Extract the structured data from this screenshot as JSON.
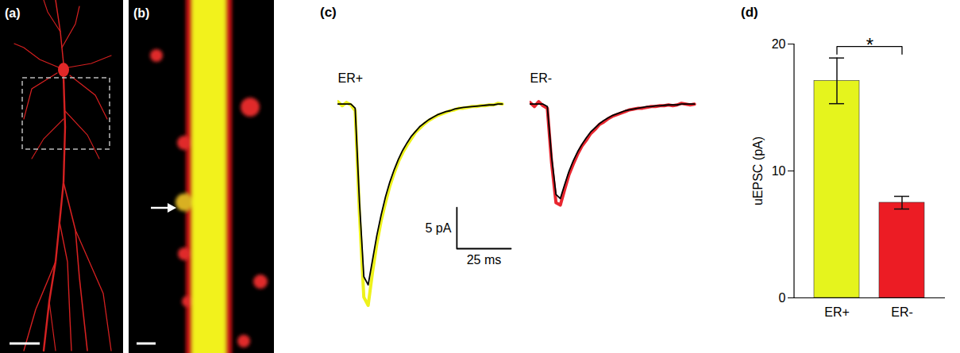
{
  "chart_data": [
    {
      "type": "image",
      "panel_label": "(a)"
    },
    {
      "type": "image",
      "panel_label": "(b)"
    },
    {
      "type": "line",
      "panel_label": "(c)",
      "tick_labels": false,
      "x": [
        0,
        2,
        4,
        6,
        8,
        10,
        12,
        14,
        16,
        18,
        20,
        22,
        24,
        26,
        28,
        30,
        32,
        34,
        36,
        38,
        40,
        42,
        44,
        46,
        48,
        50,
        52,
        54,
        56,
        58,
        60,
        62,
        64,
        66,
        68,
        70,
        72,
        74,
        76
      ],
      "xlim": [
        0,
        80
      ],
      "ylim": [
        -26,
        2
      ],
      "series": [
        {
          "name": "ER+",
          "color": "#eef21c",
          "mean_color": "#000000",
          "values": [
            0.3,
            -0.2,
            0.2,
            -0.1,
            -0.8,
            -13.5,
            -23.5,
            -24.5,
            -20.5,
            -17,
            -14.2,
            -12,
            -10,
            -8.4,
            -7,
            -5.9,
            -5,
            -4.2,
            -3.4,
            -2.9,
            -2.4,
            -2,
            -1.7,
            -1.4,
            -1.2,
            -1,
            -0.8,
            -0.7,
            -0.5,
            -0.5,
            -0.4,
            -0.3,
            -0.3,
            -0.2,
            -0.2,
            -0.1,
            -0.1,
            0.1,
            0
          ],
          "mean_values": [
            0,
            0,
            0,
            0,
            -0.5,
            -12,
            -21,
            -22,
            -19,
            -16,
            -13.5,
            -11.3,
            -9.5,
            -8,
            -6.7,
            -5.6,
            -4.7,
            -3.9,
            -3.3,
            -2.7,
            -2.3,
            -1.9,
            -1.6,
            -1.3,
            -1.1,
            -0.9,
            -0.8,
            -0.6,
            -0.5,
            -0.4,
            -0.35,
            -0.3,
            -0.25,
            -0.2,
            -0.15,
            -0.1,
            -0.1,
            0,
            0
          ]
        },
        {
          "name": "ER-",
          "color": "#e8262f",
          "mean_color": "#000000",
          "values": [
            0.2,
            -0.3,
            0.3,
            -0.2,
            -0.5,
            -7.2,
            -12,
            -12.3,
            -10.4,
            -8.6,
            -7.3,
            -6.1,
            -5.1,
            -4.4,
            -3.6,
            -3.1,
            -2.5,
            -2.2,
            -1.8,
            -1.5,
            -1.3,
            -1.1,
            -0.9,
            -0.7,
            -0.6,
            -0.5,
            -0.5,
            -0.4,
            -0.3,
            -0.3,
            -0.2,
            -0.2,
            -0.1,
            -0.2,
            -0.1,
            0.1,
            0,
            -0.1,
            0
          ],
          "mean_values": [
            0,
            0,
            0,
            0,
            -0.3,
            -6.5,
            -11,
            -11.5,
            -9.8,
            -8.2,
            -6.9,
            -5.8,
            -4.9,
            -4.1,
            -3.4,
            -2.9,
            -2.4,
            -2,
            -1.7,
            -1.4,
            -1.2,
            -1,
            -0.8,
            -0.7,
            -0.6,
            -0.5,
            -0.4,
            -0.3,
            -0.3,
            -0.2,
            -0.2,
            -0.15,
            -0.1,
            -0.1,
            -0.1,
            0,
            0,
            0,
            0
          ]
        }
      ],
      "scale_bar": {
        "x": 25,
        "x_label": "25 ms",
        "y": 5,
        "y_label": "5 pA"
      }
    },
    {
      "type": "bar",
      "panel_label": "(d)",
      "categories": [
        "ER+",
        "ER-"
      ],
      "values": [
        17.1,
        7.5
      ],
      "errors": [
        1.8,
        0.5
      ],
      "colors": [
        "#e5f41d",
        "#ec1c24"
      ],
      "ylabel": "uEPSC (pA)",
      "ylim": [
        0,
        20
      ],
      "yticks": [
        0,
        10,
        20
      ],
      "annotations": [
        {
          "text": "*",
          "between": [
            "ER+",
            "ER-"
          ]
        }
      ]
    }
  ]
}
